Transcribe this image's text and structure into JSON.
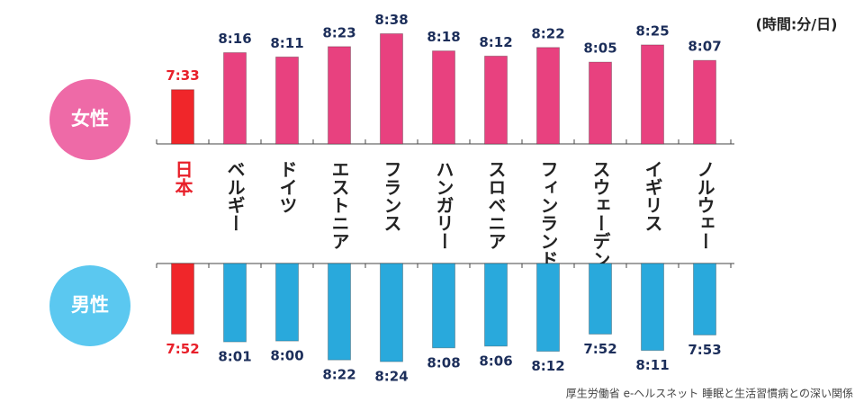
{
  "chart_data": {
    "type": "bar",
    "unit": "(時間:分/日)",
    "source": "厚生労働省 e-ヘルスネット 睡眠と生活習慣病との深い関係",
    "categories": [
      "日本",
      "ベルギー",
      "ドイツ",
      "エストニア",
      "フランス",
      "ハンガリー",
      "スロベニア",
      "フィンランド",
      "スウェーデン",
      "イギリス",
      "ノルウェー"
    ],
    "category_colors": [
      "#e8202a",
      "#222222",
      "#222222",
      "#222222",
      "#222222",
      "#222222",
      "#222222",
      "#222222",
      "#222222",
      "#222222",
      "#222222"
    ],
    "ylim": [
      390,
      530
    ],
    "series": [
      {
        "name": "女性",
        "color": "#ee6aa7",
        "colors": [
          "#f0262a",
          "#e8417f",
          "#e8417f",
          "#e8417f",
          "#e8417f",
          "#e8417f",
          "#e8417f",
          "#e8417f",
          "#e8417f",
          "#e8417f",
          "#e8417f"
        ],
        "values": [
          453,
          496,
          491,
          503,
          518,
          498,
          492,
          502,
          485,
          505,
          487
        ],
        "value_labels": [
          "7:33",
          "8:16",
          "8:11",
          "8:23",
          "8:38",
          "8:18",
          "8:12",
          "8:22",
          "8:05",
          "8:25",
          "8:07"
        ]
      },
      {
        "name": "男性",
        "color": "#5bc8f0",
        "colors": [
          "#f0262a",
          "#29a9dc",
          "#29a9dc",
          "#29a9dc",
          "#29a9dc",
          "#29a9dc",
          "#29a9dc",
          "#29a9dc",
          "#29a9dc",
          "#29a9dc",
          "#29a9dc"
        ],
        "values": [
          472,
          481,
          480,
          502,
          504,
          488,
          486,
          492,
          472,
          491,
          473
        ],
        "value_labels": [
          "7:52",
          "8:01",
          "8:00",
          "8:22",
          "8:24",
          "8:08",
          "8:06",
          "8:12",
          "7:52",
          "8:11",
          "7:53"
        ]
      }
    ]
  }
}
